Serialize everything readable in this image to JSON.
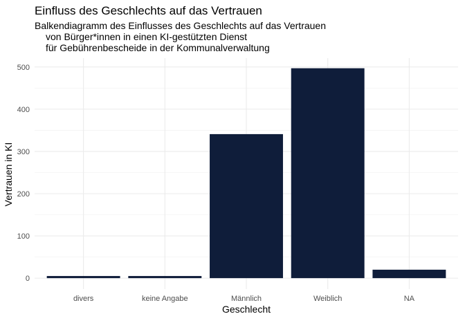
{
  "chart_data": {
    "type": "bar",
    "title": "Einfluss des Geschlechts auf das Vertrauen",
    "subtitle_lines": [
      "Balkendiagramm des Einflusses des Geschlechts auf das Vertrauen",
      "von Bürger*innen in einen KI-gestützten Dienst",
      "für Gebührenbescheide in der Kommunalverwaltung"
    ],
    "xlabel": "Geschlecht",
    "ylabel": "Vertrauen in KI",
    "categories": [
      "divers",
      "keine Angabe",
      "Männlich",
      "Weiblich",
      "NA"
    ],
    "values": [
      5,
      5,
      341,
      497,
      20
    ],
    "ylim": [
      -26,
      521
    ],
    "yticks": [
      0,
      100,
      200,
      300,
      400,
      500
    ],
    "grid": true,
    "bar_color": "#0f1d3a"
  }
}
